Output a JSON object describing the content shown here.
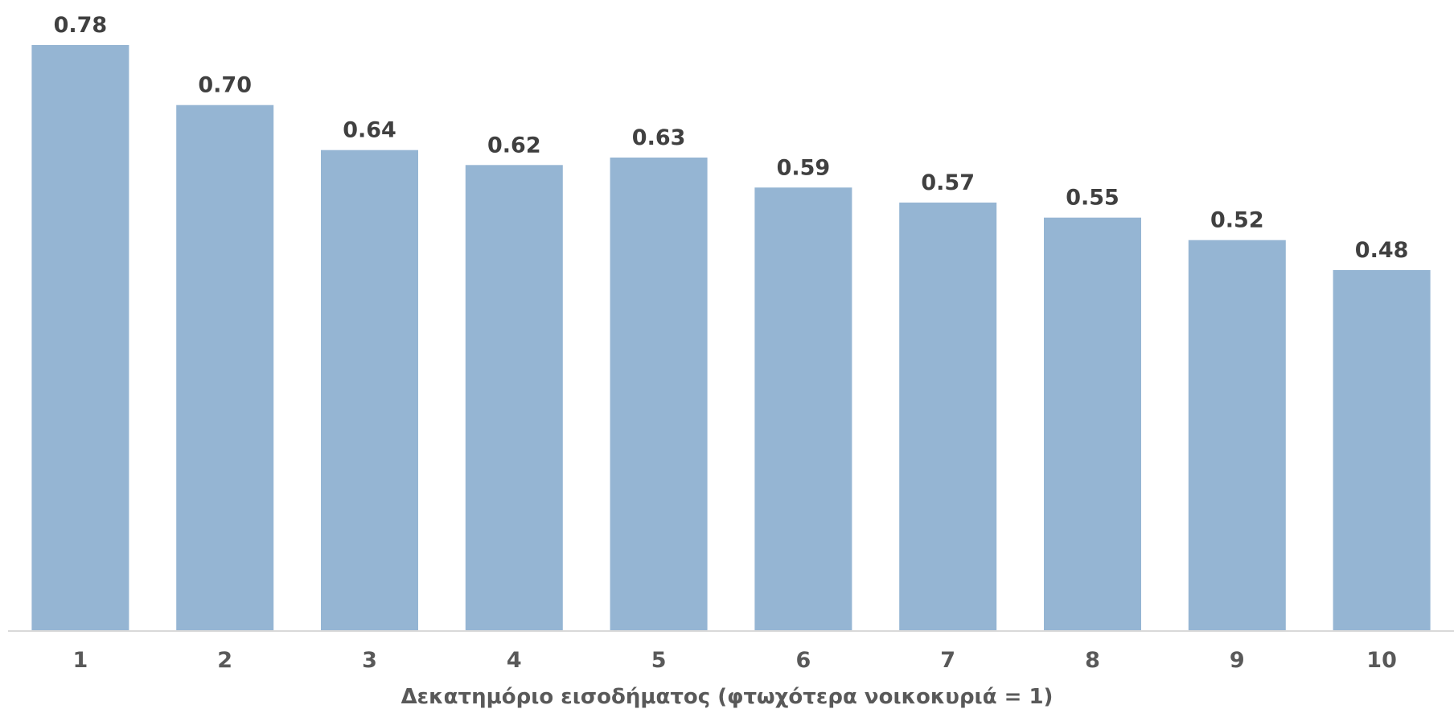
{
  "chart_data": {
    "type": "bar",
    "categories": [
      "1",
      "2",
      "3",
      "4",
      "5",
      "6",
      "7",
      "8",
      "9",
      "10"
    ],
    "values": [
      0.78,
      0.7,
      0.64,
      0.62,
      0.63,
      0.59,
      0.57,
      0.55,
      0.52,
      0.48
    ],
    "value_labels": [
      "0.78",
      "0.70",
      "0.64",
      "0.62",
      "0.63",
      "0.59",
      "0.57",
      "0.55",
      "0.52",
      "0.48"
    ],
    "title": "",
    "xlabel": "Δεκατημόριο εισοδήματος (φτωχότερα νοικοκυριά = 1)",
    "ylabel": "",
    "ylim": [
      0,
      0.78
    ],
    "grid": false,
    "legend": "none",
    "colors": {
      "bar": "#95b5d3",
      "axis": "#d9d9d9",
      "value_label": "#404040",
      "tick_label": "#595959"
    }
  }
}
